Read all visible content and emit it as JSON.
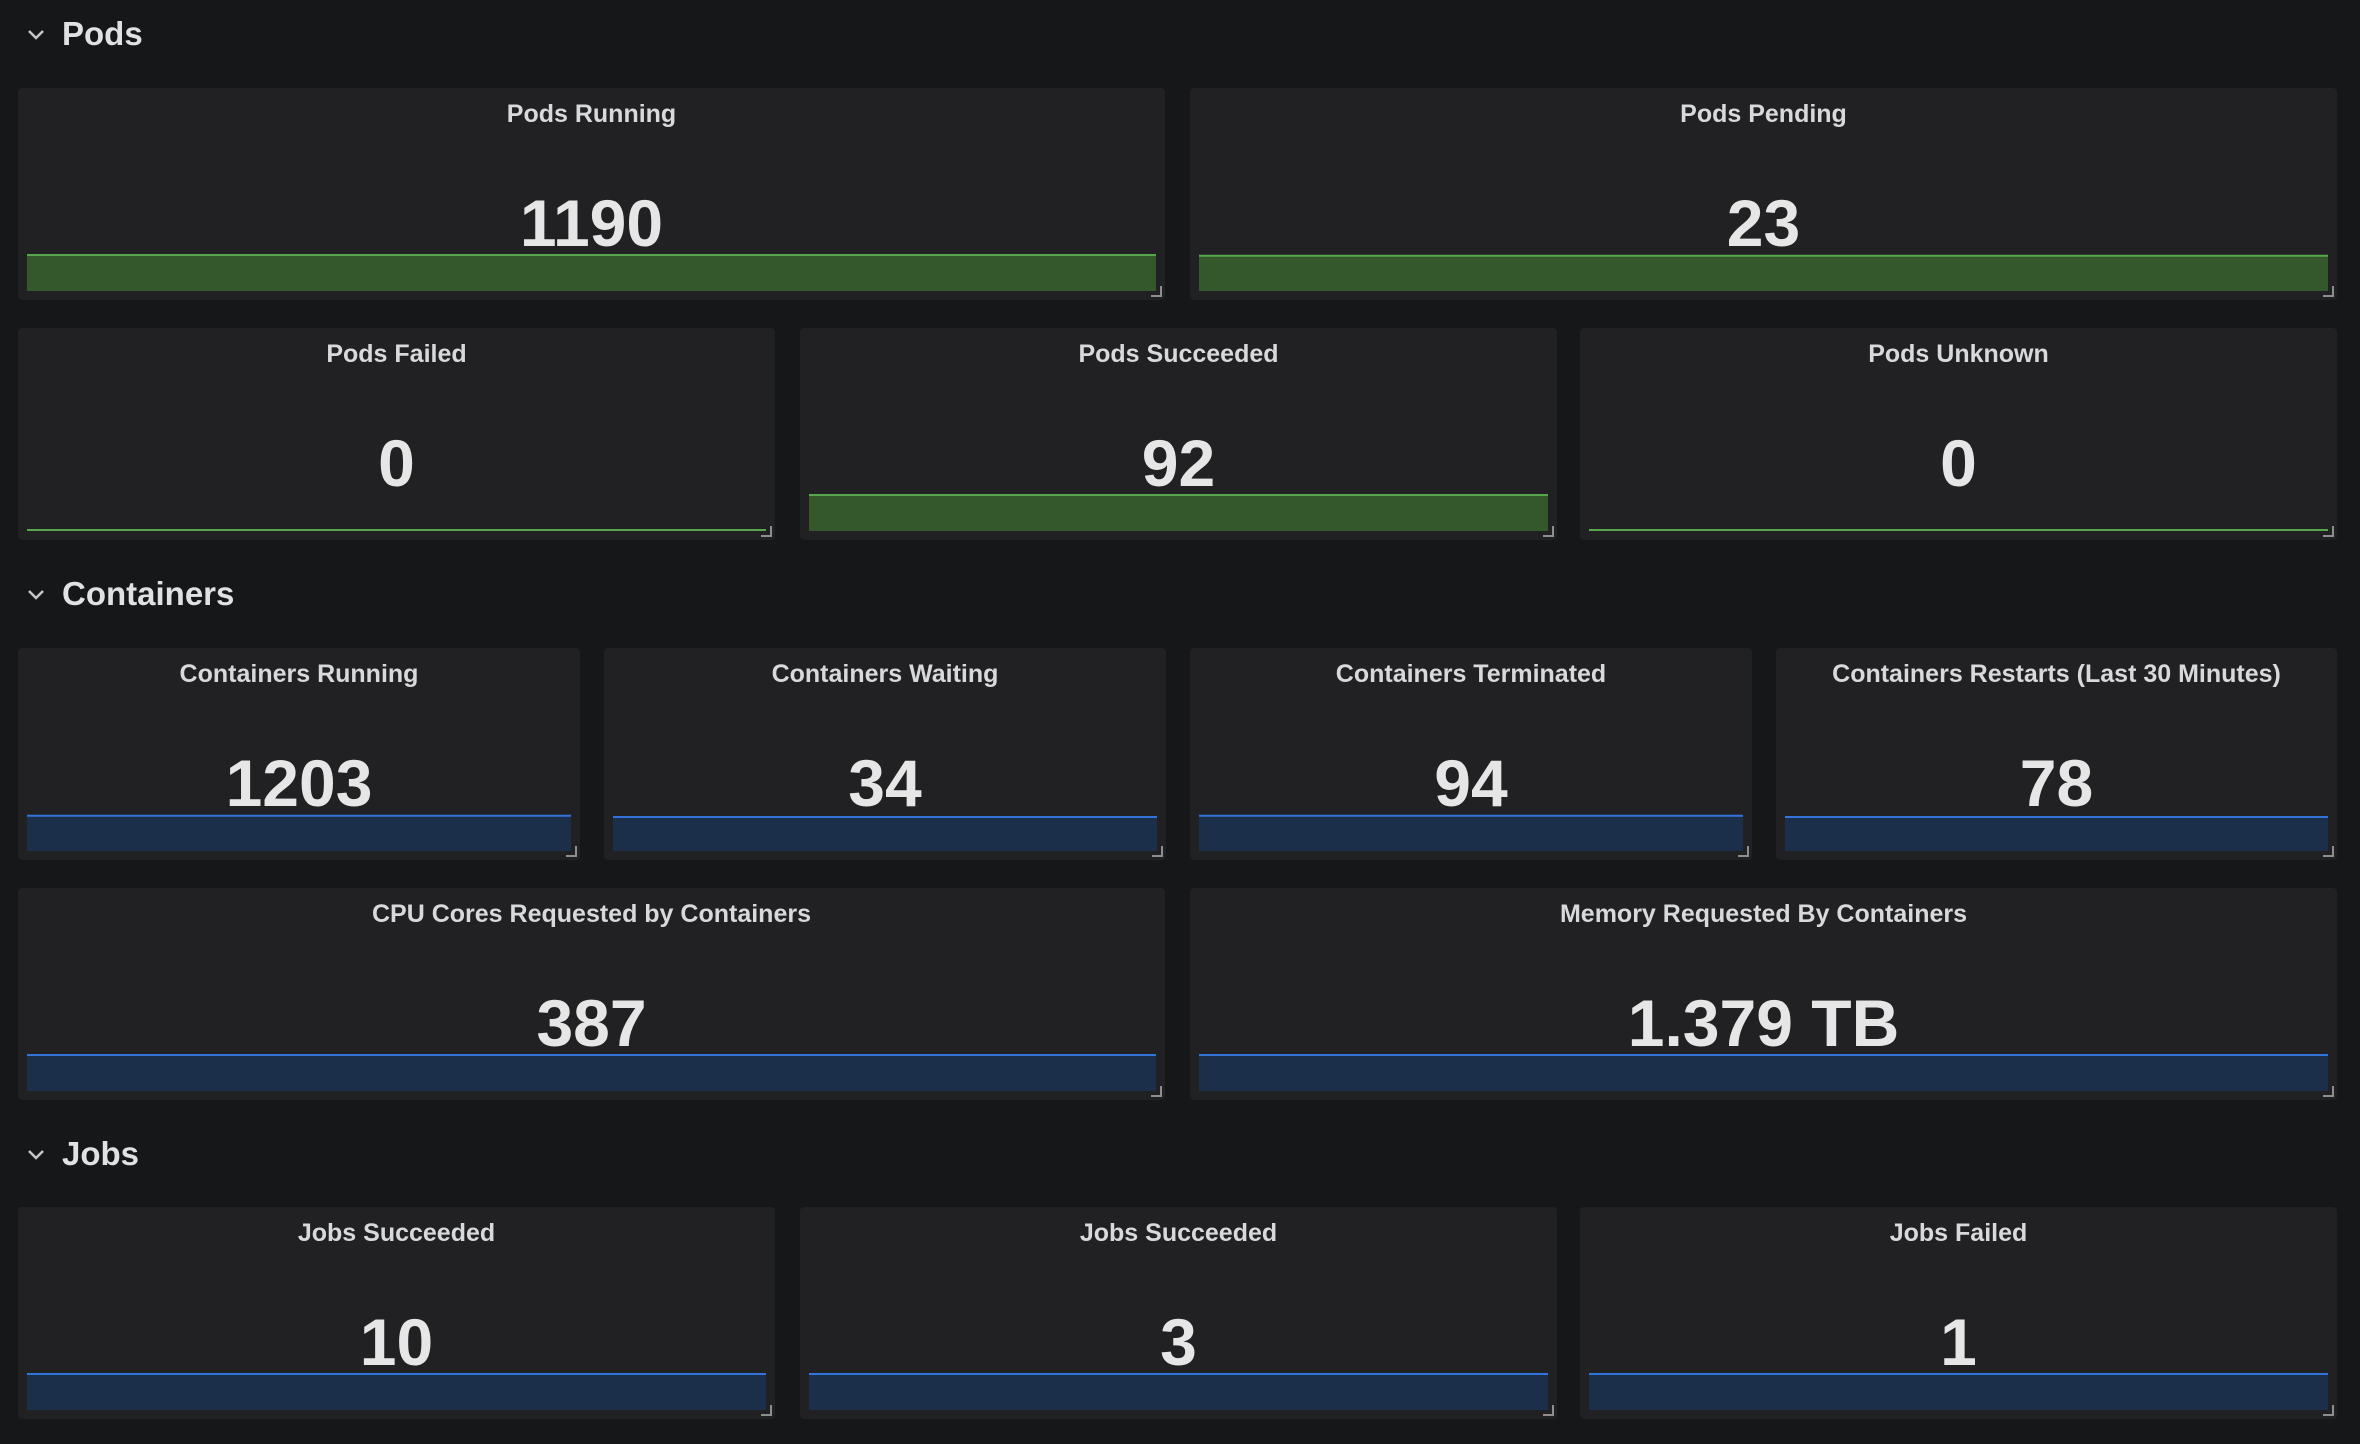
{
  "colors": {
    "background": "#161719",
    "panel": "#212124",
    "green_fill": "#34582c",
    "green_line": "#56a64b",
    "blue_fill": "#1c2f4a",
    "blue_line": "#3274d9"
  },
  "rows": {
    "pods": {
      "title": "Pods"
    },
    "containers": {
      "title": "Containers"
    },
    "jobs": {
      "title": "Jobs"
    }
  },
  "panels": {
    "pods_running": {
      "title": "Pods Running",
      "value": "1190",
      "color": "green",
      "fill": 0.9
    },
    "pods_pending": {
      "title": "Pods Pending",
      "value": "23",
      "color": "green",
      "fill": 0.88
    },
    "pods_failed": {
      "title": "Pods Failed",
      "value": "0",
      "color": "green",
      "fill": 0.0
    },
    "pods_succeeded": {
      "title": "Pods Succeeded",
      "value": "92",
      "color": "green",
      "fill": 0.9
    },
    "pods_unknown": {
      "title": "Pods Unknown",
      "value": "0",
      "color": "green",
      "fill": 0.0
    },
    "containers_running": {
      "title": "Containers Running",
      "value": "1203",
      "color": "blue",
      "fill": 0.88
    },
    "containers_waiting": {
      "title": "Containers Waiting",
      "value": "34",
      "color": "blue",
      "fill": 0.85
    },
    "containers_terminated": {
      "title": "Containers Terminated",
      "value": "94",
      "color": "blue",
      "fill": 0.88
    },
    "containers_restarts": {
      "title": "Containers Restarts (Last 30 Minutes)",
      "value": "78",
      "color": "blue",
      "fill": 0.85
    },
    "cpu_cores_requested": {
      "title": "CPU Cores Requested by Containers",
      "value": "387",
      "color": "blue",
      "fill": 0.9
    },
    "memory_requested": {
      "title": "Memory Requested By Containers",
      "value": "1.379 TB",
      "color": "blue",
      "fill": 0.9
    },
    "jobs_succeeded_1": {
      "title": "Jobs Succeeded",
      "value": "10",
      "color": "blue",
      "fill": 0.9
    },
    "jobs_succeeded_2": {
      "title": "Jobs Succeeded",
      "value": "3",
      "color": "blue",
      "fill": 0.9
    },
    "jobs_failed": {
      "title": "Jobs Failed",
      "value": "1",
      "color": "blue",
      "fill": 0.9
    }
  }
}
